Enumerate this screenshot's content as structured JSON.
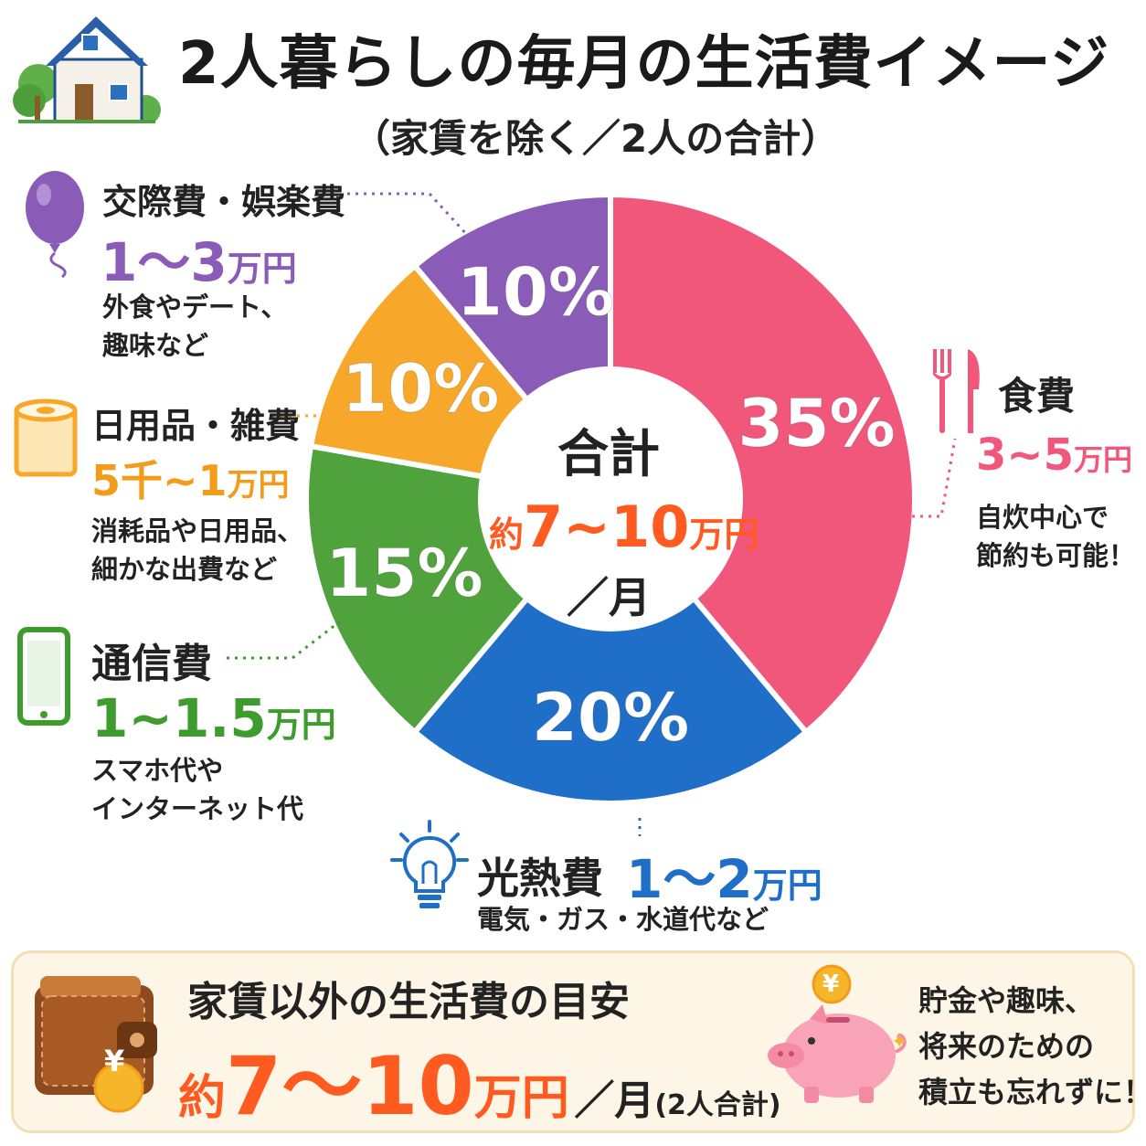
{
  "header": {
    "title": "2人暮らしの毎月の生活費イメージ",
    "subtitle": "（家賃を除く／2人の合計）"
  },
  "center": {
    "label": "合計",
    "prefix": "約",
    "amount": "7~10",
    "unit": "万円",
    "per": "／月"
  },
  "categories": [
    {
      "label": "食費",
      "amount": "3~5",
      "unit": "万円",
      "note_lines": [
        "自炊中心で",
        "節約も可能！"
      ],
      "color": "#f0577a",
      "icon": "fork-knife-icon"
    },
    {
      "label": "光熱費",
      "amount": "1～2",
      "unit": "万円",
      "note_lines": [
        "電気・ガス・水道代など"
      ],
      "color": "#1f6fc8",
      "icon": "light-bulb-icon"
    },
    {
      "label": "通信費",
      "amount": "1~1.5",
      "unit": "万円",
      "note_lines": [
        "スマホ代や",
        "インターネット代"
      ],
      "color": "#3e9b2e",
      "icon": "smartphone-icon"
    },
    {
      "label": "日用品・雑費",
      "amount": "5千~1",
      "unit": "万円",
      "note_lines": [
        "消耗品や日用品、",
        "細かな出費など"
      ],
      "color": "#f7a72a",
      "icon": "toilet-paper-icon"
    },
    {
      "label": "交際費・娯楽費",
      "amount": "1～3",
      "unit": "万円",
      "note_lines": [
        "外食やデート、",
        "趣味など"
      ],
      "color": "#8a5cb8",
      "icon": "balloon-icon"
    }
  ],
  "chart_data": {
    "type": "pie",
    "categories": [
      "食費",
      "光熱費",
      "通信費",
      "日用品・雑費",
      "交際費・娯楽費"
    ],
    "values": [
      35,
      20,
      15,
      10,
      10
    ],
    "value_labels": [
      "35%",
      "20%",
      "15%",
      "10%",
      "10%"
    ],
    "colors": [
      "#f0577a",
      "#1f6fc8",
      "#4fa23c",
      "#f7a72a",
      "#8a5cb8"
    ],
    "start": "12 o'clock",
    "direction": "clockwise"
  },
  "bottom": {
    "heading": "家賃以外の生活費の目安",
    "prefix": "約",
    "amount": "7～10",
    "unit": "万円",
    "per": "／月",
    "scope": "(2人合計)",
    "note_lines": [
      "貯金や趣味、",
      "将来のための",
      "積立も忘れずに！"
    ],
    "yen_symbol": "¥"
  },
  "icons": {
    "house": "house-icon",
    "wallet": "wallet-icon",
    "piggy_bank": "piggy-bank-icon",
    "sparkle": "sparkle-icon"
  }
}
